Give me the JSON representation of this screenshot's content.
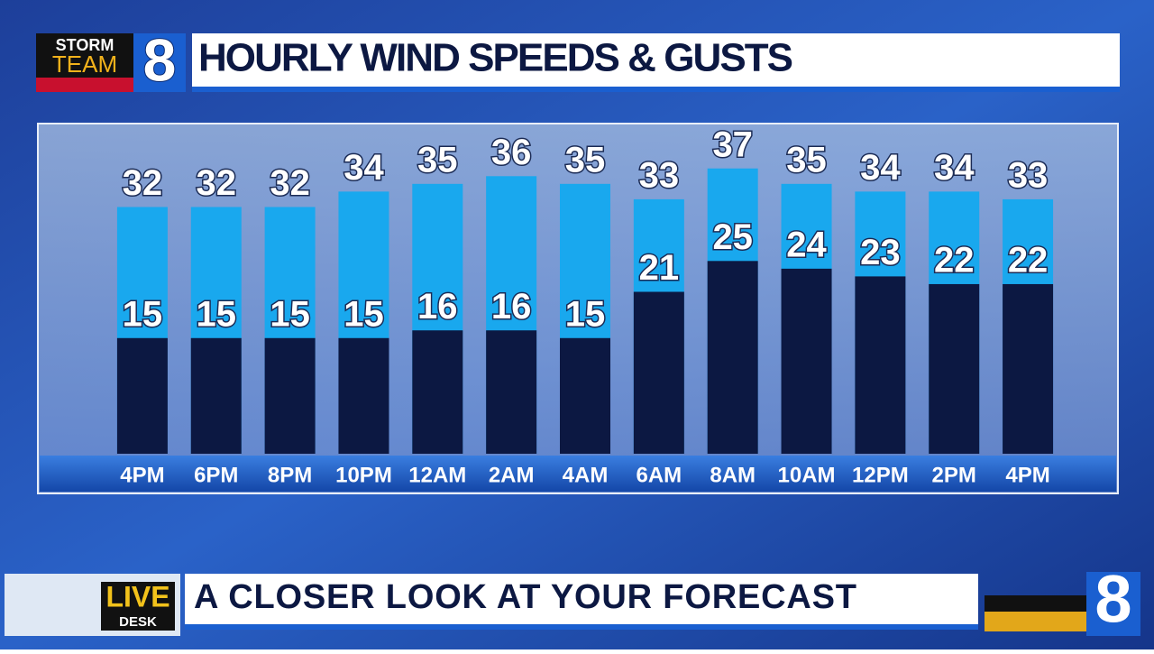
{
  "branding": {
    "storm": "STORM",
    "team": "TEAM",
    "number": "8"
  },
  "chart_data": {
    "type": "bar",
    "barmode": "overlay",
    "title": "HOURLY WIND SPEEDS & GUSTS",
    "categories": [
      "4PM",
      "6PM",
      "8PM",
      "10PM",
      "12AM",
      "2AM",
      "4AM",
      "6AM",
      "8AM",
      "10AM",
      "12PM",
      "2PM",
      "4PM"
    ],
    "series": [
      {
        "color": "#19a8ee",
        "values": [
          32,
          32,
          32,
          34,
          35,
          36,
          35,
          33,
          37,
          35,
          34,
          34,
          33
        ]
      },
      {
        "color": "#0c1842",
        "values": [
          15,
          15,
          15,
          15,
          16,
          16,
          15,
          21,
          25,
          24,
          23,
          22,
          22
        ]
      }
    ],
    "ylim": [
      0,
      42
    ]
  },
  "lower_third": {
    "badge_top": "LIVE",
    "badge_bottom": "DESK",
    "headline": "A CLOSER LOOK AT YOUR FORECAST"
  },
  "corner_logo": "8"
}
